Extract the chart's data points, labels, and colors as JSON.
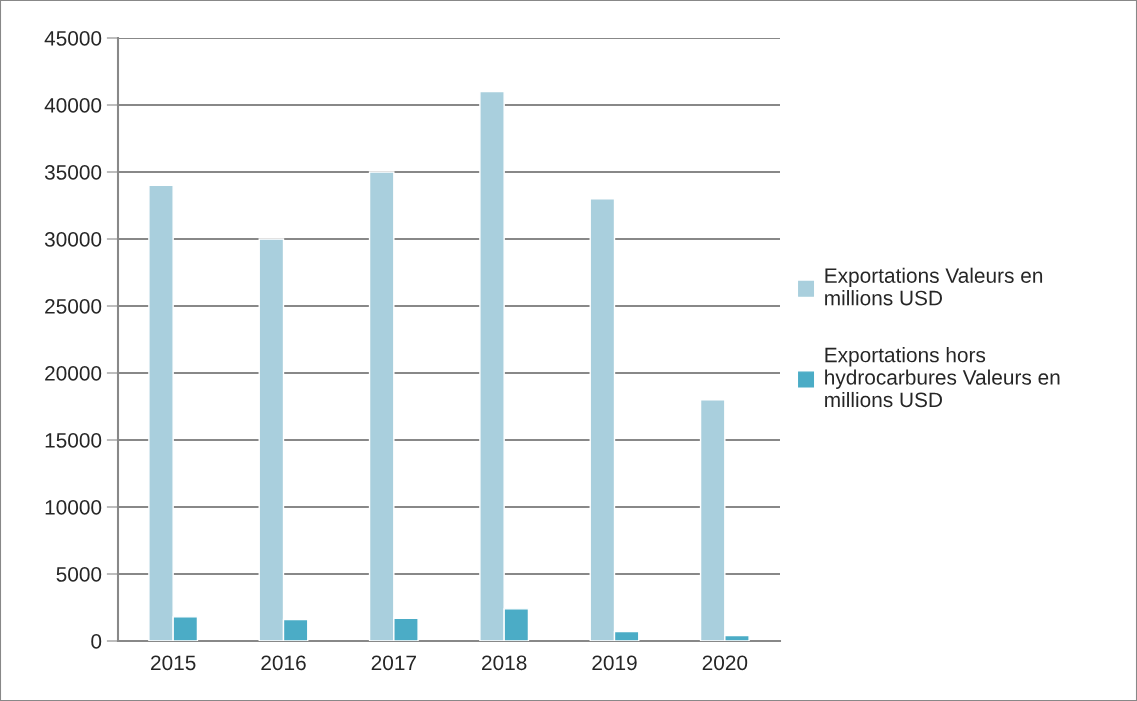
{
  "chart_data": {
    "type": "bar",
    "categories": [
      "2015",
      "2016",
      "2017",
      "2018",
      "2019",
      "2020"
    ],
    "series": [
      {
        "name": "Exportations Valeurs en millions USD",
        "color": "#a9cfdd",
        "values": [
          34000,
          30000,
          35000,
          41000,
          33000,
          18000
        ]
      },
      {
        "name": "Exportations hors hydrocarbures Valeurs en millions USD",
        "color": "#4bacc6",
        "values": [
          1800,
          1600,
          1700,
          2400,
          700,
          400
        ]
      }
    ],
    "ylim": [
      0,
      45000
    ],
    "yticks": [
      0,
      5000,
      10000,
      15000,
      20000,
      25000,
      30000,
      35000,
      40000,
      45000
    ],
    "grid": "y",
    "legend": "right"
  }
}
